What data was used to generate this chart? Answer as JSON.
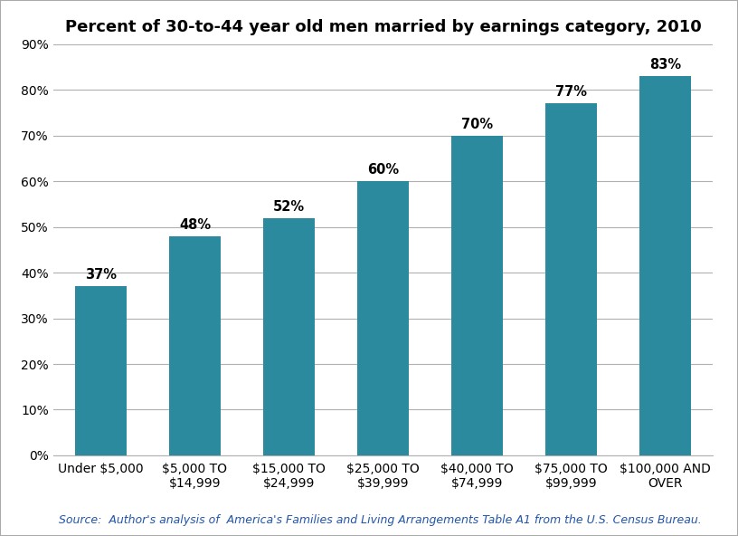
{
  "title": "Percent of 30-to-44 year old men married by earnings category, 2010",
  "categories": [
    "Under $5,000",
    "$5,000 TO\n$14,999",
    "$15,000 TO\n$24,999",
    "$25,000 TO\n$39,999",
    "$40,000 TO\n$74,999",
    "$75,000 TO\n$99,999",
    "$100,000 AND\nOVER"
  ],
  "values": [
    37,
    48,
    52,
    60,
    70,
    77,
    83
  ],
  "bar_color": "#2b8a9e",
  "label_color": "#000000",
  "background_color": "#ffffff",
  "border_color": "#aaaaaa",
  "ylim": [
    0,
    90
  ],
  "yticks": [
    0,
    10,
    20,
    30,
    40,
    50,
    60,
    70,
    80,
    90
  ],
  "title_fontsize": 13,
  "label_fontsize": 10.5,
  "tick_fontsize": 10,
  "source_text": "Source:  Author's analysis of  America's Families and Living Arrangements Table A1 from the U.S. Census Bureau.",
  "source_fontsize": 9,
  "grid_color": "#b0b0b0"
}
